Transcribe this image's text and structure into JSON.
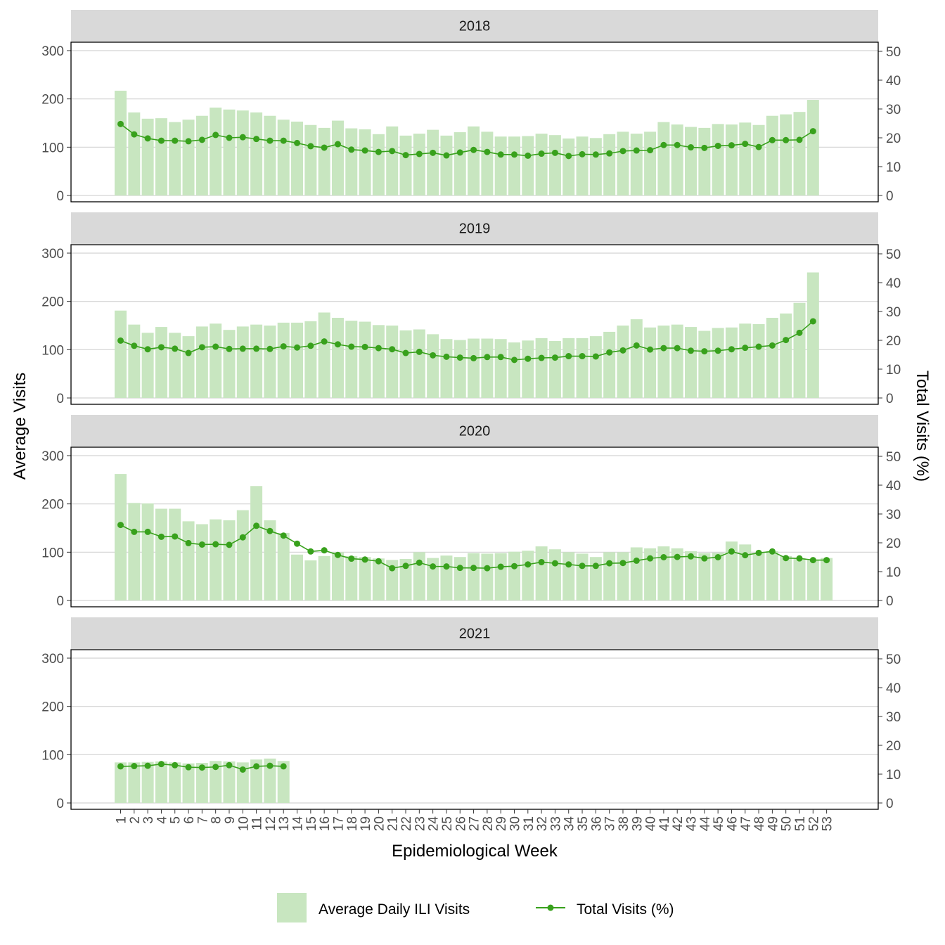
{
  "chart_data": {
    "type": "bar",
    "xlabel": "Epidemiological Week",
    "ylabel": "Average Visits",
    "ylabel_right": "Total Visits (%)",
    "ylim": [
      0,
      300
    ],
    "ylim_right": [
      0,
      50
    ],
    "y_ticks": [
      "0",
      "100",
      "200",
      "300"
    ],
    "y_ticks_right": [
      "0",
      "10",
      "20",
      "30",
      "40",
      "50"
    ],
    "x_ticks": [
      "1",
      "2",
      "3",
      "4",
      "5",
      "6",
      "7",
      "8",
      "9",
      "10",
      "11",
      "12",
      "13",
      "14",
      "15",
      "16",
      "17",
      "18",
      "19",
      "20",
      "21",
      "22",
      "23",
      "24",
      "25",
      "26",
      "27",
      "28",
      "29",
      "30",
      "31",
      "32",
      "33",
      "34",
      "35",
      "36",
      "37",
      "38",
      "39",
      "40",
      "41",
      "42",
      "43",
      "44",
      "45",
      "46",
      "47",
      "48",
      "49",
      "50",
      "51",
      "52",
      "53"
    ],
    "grid": true,
    "legend_position": "bottom",
    "legend": [
      "Average Daily ILI Visits",
      "Total Visits (%)"
    ],
    "colors": {
      "bar": "#c8e6c0",
      "line": "#38a11c",
      "strip": "#d9d9d9",
      "grid": "#d3d3d3"
    },
    "panels": [
      {
        "year": "2018",
        "bars": [
          217,
          172,
          159,
          160,
          152,
          157,
          165,
          182,
          178,
          176,
          172,
          165,
          157,
          153,
          146,
          140,
          155,
          139,
          137,
          127,
          143,
          124,
          128,
          136,
          124,
          131,
          143,
          132,
          122,
          122,
          123,
          128,
          125,
          118,
          122,
          119,
          127,
          132,
          128,
          132,
          152,
          147,
          142,
          140,
          148,
          147,
          151,
          146,
          165,
          168,
          173,
          198
        ],
        "line": [
          24.8,
          21.2,
          19.8,
          19.0,
          19.0,
          18.8,
          19.3,
          21.0,
          20.0,
          20.2,
          19.6,
          19.0,
          19.0,
          18.2,
          17.1,
          16.6,
          17.8,
          15.9,
          15.6,
          15.1,
          15.4,
          14.0,
          14.4,
          14.8,
          13.9,
          14.9,
          15.8,
          15.1,
          14.2,
          14.2,
          13.8,
          14.5,
          14.8,
          13.7,
          14.3,
          14.2,
          14.6,
          15.4,
          15.6,
          15.7,
          17.5,
          17.5,
          16.7,
          16.5,
          17.2,
          17.4,
          17.9,
          16.8,
          19.2,
          19.2,
          19.3,
          22.3
        ]
      },
      {
        "year": "2019",
        "bars": [
          181,
          152,
          135,
          147,
          135,
          128,
          148,
          154,
          141,
          148,
          152,
          150,
          156,
          156,
          159,
          177,
          166,
          160,
          158,
          151,
          150,
          140,
          142,
          132,
          122,
          120,
          123,
          123,
          122,
          115,
          119,
          124,
          118,
          124,
          124,
          128,
          137,
          150,
          163,
          146,
          150,
          152,
          147,
          139,
          145,
          146,
          154,
          153,
          166,
          175,
          197,
          260
        ],
        "line": [
          19.9,
          18.1,
          16.9,
          17.6,
          17.1,
          15.6,
          17.6,
          17.8,
          17.0,
          17.1,
          17.1,
          17.0,
          17.9,
          17.5,
          18.1,
          19.6,
          18.6,
          17.8,
          17.7,
          17.3,
          16.9,
          15.6,
          16.0,
          14.8,
          14.3,
          14.0,
          13.8,
          14.2,
          14.2,
          13.2,
          13.6,
          13.9,
          14.0,
          14.5,
          14.5,
          14.4,
          15.8,
          16.5,
          18.2,
          16.8,
          17.3,
          17.3,
          16.4,
          16.2,
          16.4,
          16.9,
          17.4,
          17.8,
          18.2,
          20.1,
          22.6,
          26.6
        ]
      },
      {
        "year": "2020",
        "bars": [
          262,
          202,
          201,
          190,
          190,
          164,
          158,
          168,
          166,
          187,
          237,
          166,
          140,
          95,
          83,
          92,
          100,
          92,
          90,
          87,
          84,
          86,
          100,
          88,
          93,
          90,
          98,
          97,
          98,
          101,
          103,
          112,
          106,
          100,
          97,
          90,
          100,
          100,
          110,
          108,
          112,
          108,
          102,
          98,
          99,
          122,
          116,
          98,
          102,
          92,
          88,
          83,
          88
        ],
        "line": [
          26.2,
          23.8,
          23.8,
          22.1,
          22.2,
          19.9,
          19.4,
          19.5,
          19.3,
          21.9,
          25.9,
          24.1,
          22.5,
          19.7,
          17.0,
          17.4,
          15.8,
          14.5,
          14.2,
          13.6,
          11.2,
          12.0,
          13.1,
          11.8,
          11.8,
          11.3,
          11.3,
          11.2,
          11.7,
          11.9,
          12.5,
          13.3,
          12.9,
          12.5,
          12.0,
          12.0,
          12.9,
          13.0,
          13.8,
          14.6,
          15.0,
          15.1,
          15.3,
          14.6,
          15.0,
          17.0,
          15.7,
          16.5,
          17.0,
          14.7,
          14.6,
          14.0,
          14.0
        ]
      },
      {
        "year": "2021",
        "bars": [
          84,
          84,
          85,
          86,
          84,
          82,
          83,
          87,
          86,
          84,
          90,
          92,
          87
        ],
        "line": [
          12.7,
          12.8,
          12.9,
          13.5,
          13.1,
          12.4,
          12.3,
          12.5,
          13.1,
          11.6,
          12.7,
          12.9,
          12.7
        ]
      }
    ]
  }
}
